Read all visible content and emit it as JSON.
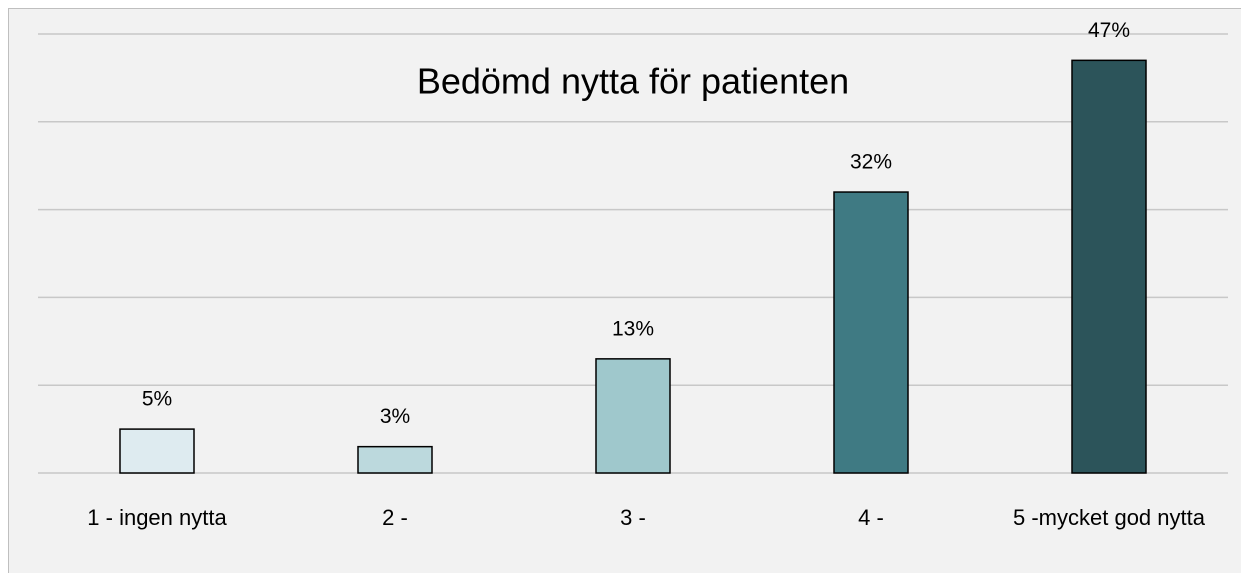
{
  "chart_data": {
    "type": "bar",
    "title": "Bedömd nytta för patienten",
    "categories": [
      "1 - ingen nytta",
      "2 -",
      "3 -",
      "4 -",
      "5 -mycket god nytta"
    ],
    "values": [
      5,
      3,
      13,
      32,
      47
    ],
    "value_labels": [
      "5%",
      "3%",
      "13%",
      "32%",
      "47%"
    ],
    "colors": [
      "#deebf0",
      "#bcd9dd",
      "#9fc8cc",
      "#3f7a83",
      "#2c545a"
    ],
    "ylim": [
      0,
      50
    ],
    "yticks": [
      0,
      10,
      20,
      30,
      40,
      50
    ],
    "grid": true
  }
}
